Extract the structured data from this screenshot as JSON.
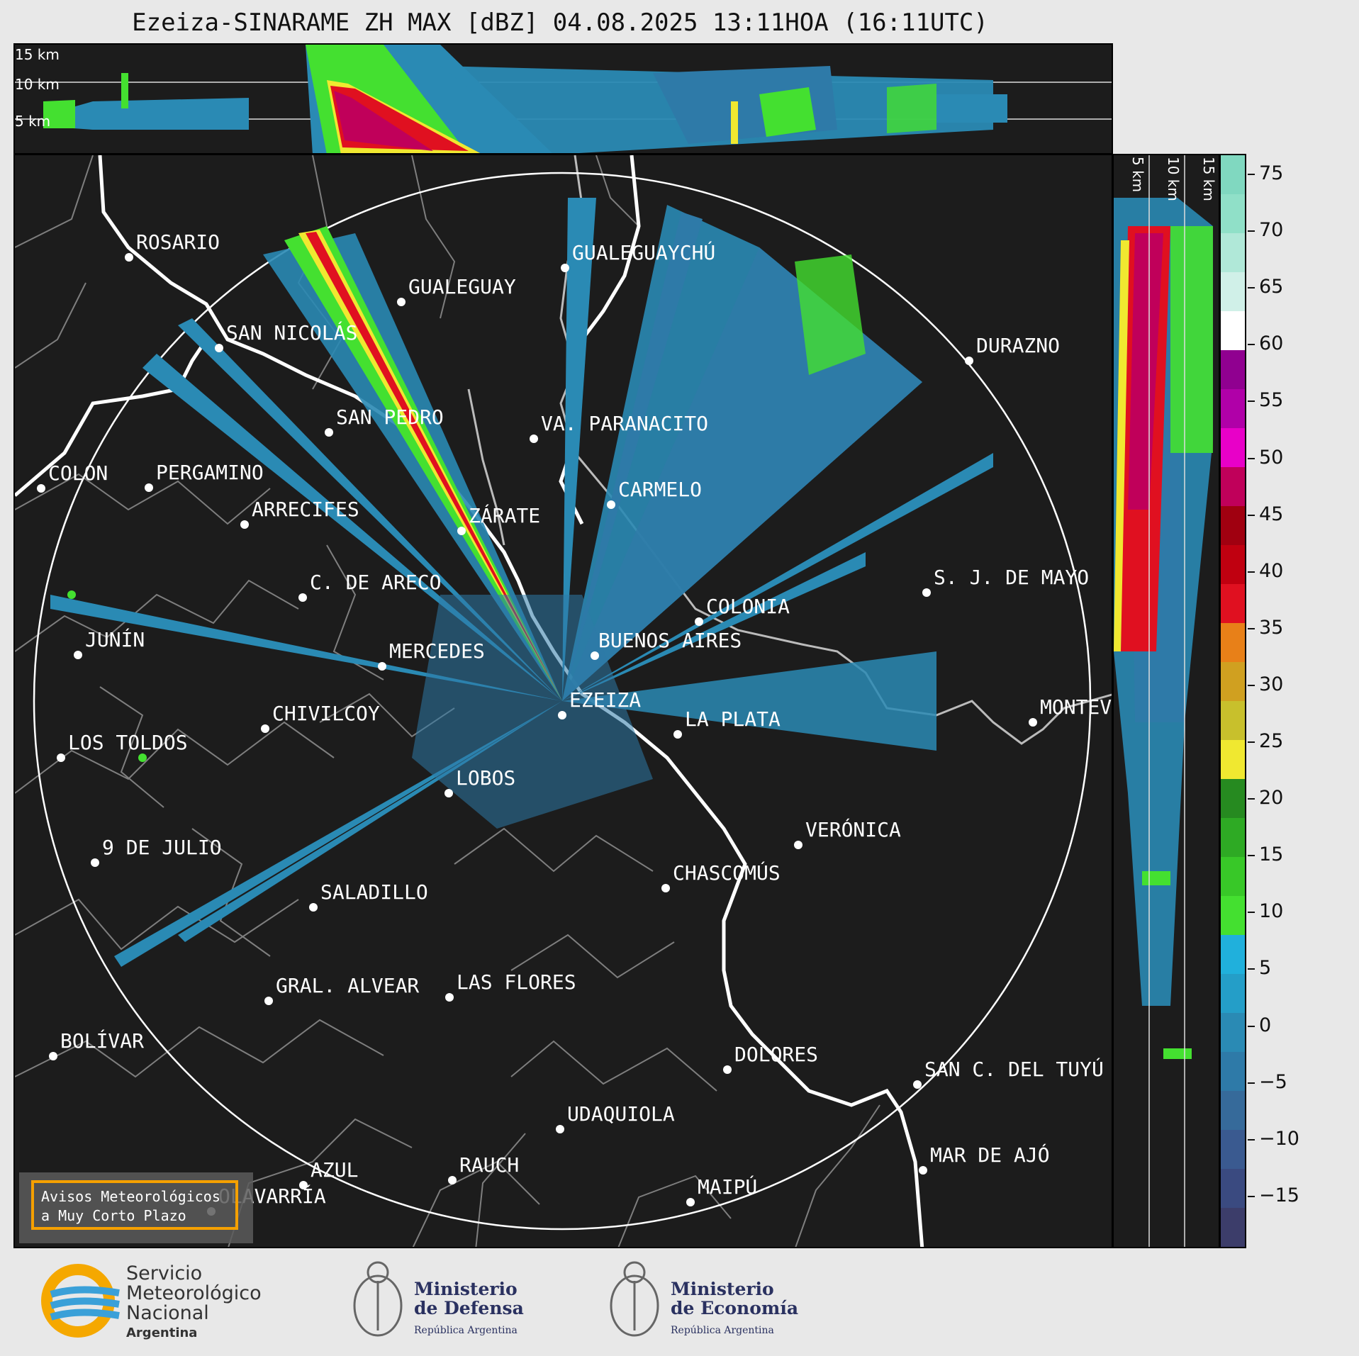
{
  "title": "Ezeiza-SINARAME ZH MAX [dBZ] 04.08.2025 13:11HOA (16:11UTC)",
  "top_panel": {
    "alt_labels": [
      "15 km",
      "10 km",
      "5 km"
    ]
  },
  "side_panel": {
    "alt_labels": [
      "5 km",
      "10 km",
      "15 km"
    ]
  },
  "colorbar": {
    "ticks": [
      "75",
      "70",
      "65",
      "60",
      "55",
      "50",
      "45",
      "40",
      "35",
      "30",
      "25",
      "20",
      "15",
      "10",
      "5",
      "0",
      "−5",
      "−10",
      "−15"
    ],
    "colors": [
      "#3c3d6a",
      "#3a4a80",
      "#3a5a90",
      "#366a9a",
      "#2e7aa8",
      "#2a8ab4",
      "#249ec8",
      "#20b0dc",
      "#44e030",
      "#38c828",
      "#2eaa24",
      "#268a20",
      "#f0e830",
      "#c8c02c",
      "#d0a020",
      "#e88018",
      "#e01020",
      "#c00010",
      "#a00010",
      "#c0005a",
      "#e800c8",
      "#b000a8",
      "#900090",
      "#ffffff",
      "#d0f0e8",
      "#b0e8d8",
      "#90e0c8",
      "#80d8c0"
    ]
  },
  "cities": [
    {
      "name": "ROSARIO"
    },
    {
      "name": "GUALEGUAYCHÚ"
    },
    {
      "name": "GUALEGUAY"
    },
    {
      "name": "SAN NICOLÁS"
    },
    {
      "name": "DURAZNO"
    },
    {
      "name": "SAN PEDRO"
    },
    {
      "name": "VA. PARANACITO"
    },
    {
      "name": "COLON"
    },
    {
      "name": "PERGAMINO"
    },
    {
      "name": "CARMELO"
    },
    {
      "name": "ARRECIFES"
    },
    {
      "name": "ZÁRATE"
    },
    {
      "name": "S. J. DE MAYO"
    },
    {
      "name": "C. DE ARECO"
    },
    {
      "name": "COLONIA"
    },
    {
      "name": "BUENOS AIRES"
    },
    {
      "name": "JUNÍN"
    },
    {
      "name": "MERCEDES"
    },
    {
      "name": "EZEIZA"
    },
    {
      "name": "MONTEV"
    },
    {
      "name": "CHIVILCOY"
    },
    {
      "name": "LA PLATA"
    },
    {
      "name": "LOS TOLDOS"
    },
    {
      "name": "LOBOS"
    },
    {
      "name": "VERÓNICA"
    },
    {
      "name": "9 DE JULIO"
    },
    {
      "name": "CHASCOMÚS"
    },
    {
      "name": "SALADILLO"
    },
    {
      "name": "GRAL. ALVEAR"
    },
    {
      "name": "LAS FLORES"
    },
    {
      "name": "BOLÍVAR"
    },
    {
      "name": "DOLORES"
    },
    {
      "name": "SAN C. DEL TUYÚ"
    },
    {
      "name": "UDAQUIOLA"
    },
    {
      "name": "MAR DE AJÓ"
    },
    {
      "name": "AZUL"
    },
    {
      "name": "RAUCH"
    },
    {
      "name": "OLAVARRÍA"
    },
    {
      "name": "MAIPÚ"
    }
  ],
  "badge": {
    "line1": "Avisos Meteorológicos",
    "line2": "a Muy Corto Plazo"
  },
  "footer": {
    "smn": {
      "line1": "Servicio",
      "line2": "Meteorológico",
      "line3": "Nacional",
      "line4": "Argentina"
    },
    "defensa": {
      "line1": "Ministerio",
      "line2": "de Defensa",
      "line3": "República Argentina"
    },
    "economia": {
      "line1": "Ministerio",
      "line2": "de Economía",
      "line3": "República Argentina"
    }
  }
}
